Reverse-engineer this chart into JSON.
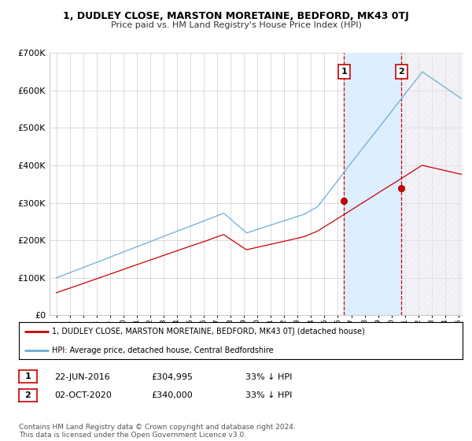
{
  "title": "1, DUDLEY CLOSE, MARSTON MORETAINE, BEDFORD, MK43 0TJ",
  "subtitle": "Price paid vs. HM Land Registry's House Price Index (HPI)",
  "ylim": [
    0,
    700000
  ],
  "yticks": [
    0,
    100000,
    200000,
    300000,
    400000,
    500000,
    600000,
    700000
  ],
  "ytick_labels": [
    "£0",
    "£100K",
    "£200K",
    "£300K",
    "£400K",
    "£500K",
    "£600K",
    "£700K"
  ],
  "background_color": "#ffffff",
  "grid_color": "#cccccc",
  "hpi_color": "#6aaed6",
  "shade_color": "#ddeeff",
  "price_color": "#cc0000",
  "sale1_year": 2016.47,
  "sale1_price": 304995,
  "sale2_year": 2020.75,
  "sale2_price": 340000,
  "legend_line1": "1, DUDLEY CLOSE, MARSTON MORETAINE, BEDFORD, MK43 0TJ (detached house)",
  "legend_line2": "HPI: Average price, detached house, Central Bedfordshire",
  "table_entries": [
    {
      "num": "1",
      "date": "22-JUN-2016",
      "price": "£304,995",
      "change": "33% ↓ HPI"
    },
    {
      "num": "2",
      "date": "02-OCT-2020",
      "price": "£340,000",
      "change": "33% ↓ HPI"
    }
  ],
  "footnote": "Contains HM Land Registry data © Crown copyright and database right 2024.\nThis data is licensed under the Open Government Licence v3.0.",
  "xmin": 1995.0,
  "xmax": 2025.3
}
